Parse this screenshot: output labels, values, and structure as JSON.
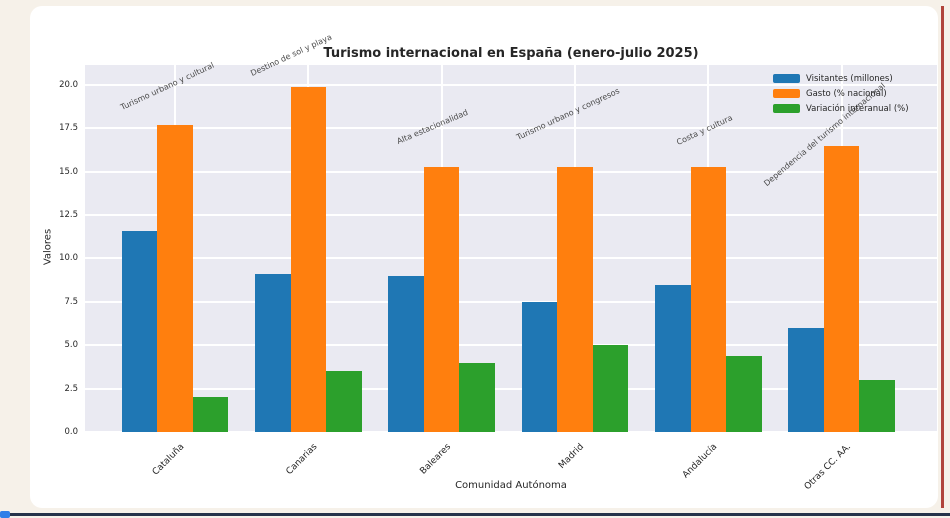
{
  "window": {
    "background_color": "#f6f1e9"
  },
  "chart_data": {
    "type": "bar",
    "title": "Turismo internacional en España (enero-julio 2025)",
    "xlabel": "Comunidad Autónoma",
    "ylabel": "Valores",
    "categories": [
      "Cataluña",
      "Canarias",
      "Baleares",
      "Madrid",
      "Andalucía",
      "Otras CC. AA."
    ],
    "series": [
      {
        "name": "Visitantes (millones)",
        "color": "#1f77b4",
        "values": [
          11.6,
          9.1,
          9.0,
          7.5,
          8.5,
          6.0
        ]
      },
      {
        "name": "Gasto (% nacional)",
        "color": "#ff7f0e",
        "values": [
          17.7,
          19.9,
          15.3,
          15.3,
          15.3,
          16.5
        ]
      },
      {
        "name": "Variación interanual (%)",
        "color": "#2ca02c",
        "values": [
          2.0,
          3.5,
          4.0,
          5.0,
          4.4,
          3.0
        ]
      }
    ],
    "annotations": [
      {
        "category": "Cataluña",
        "text": "Turismo urbano y cultural"
      },
      {
        "category": "Canarias",
        "text": "Destino de sol y playa"
      },
      {
        "category": "Baleares",
        "text": "Alta estacionalidad"
      },
      {
        "category": "Madrid",
        "text": "Turismo urbano y congresos"
      },
      {
        "category": "Andalucía",
        "text": "Costa y cultura"
      },
      {
        "category": "Otras CC. AA.",
        "text": "Dependencia del turismo internacional"
      }
    ],
    "yticks": [
      "0.0",
      "2.5",
      "5.0",
      "7.5",
      "10.0",
      "12.5",
      "15.0",
      "17.5",
      "20.0"
    ],
    "ylim": [
      0,
      21.15
    ],
    "grid": true,
    "legend_position": "upper right",
    "plot_background": "#eaeaf2",
    "grid_color": "#ffffff"
  }
}
